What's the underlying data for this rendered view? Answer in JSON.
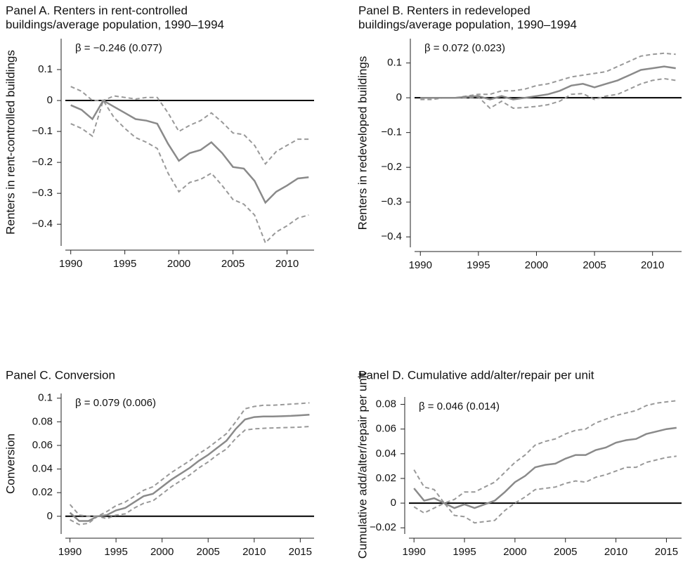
{
  "chart_data": [
    {
      "type": "line",
      "title": [
        "Panel A. Renters in rent-controlled",
        "buildings/average population, 1990–1994"
      ],
      "ylabel": "Renters in rent-controlled buildings",
      "annotation": "β = −0.246 (0.077)",
      "x": [
        1990,
        1991,
        1992,
        1993,
        1994,
        1995,
        1996,
        1997,
        1998,
        1999,
        2000,
        2001,
        2002,
        2003,
        2004,
        2005,
        2006,
        2007,
        2008,
        2009,
        2010,
        2011,
        2012
      ],
      "series": [
        {
          "color": "#8a8a8a",
          "linestyle": "solid",
          "values": [
            -0.015,
            -0.03,
            -0.06,
            0.0,
            -0.02,
            -0.04,
            -0.06,
            -0.065,
            -0.075,
            -0.14,
            -0.195,
            -0.17,
            -0.16,
            -0.135,
            -0.17,
            -0.215,
            -0.22,
            -0.26,
            -0.33,
            -0.295,
            -0.275,
            -0.252,
            -0.248
          ]
        },
        {
          "color": "#999999",
          "linestyle": "dashed",
          "values": [
            0.045,
            0.03,
            0.0,
            0.0,
            0.015,
            0.01,
            0.005,
            0.01,
            0.01,
            -0.04,
            -0.1,
            -0.08,
            -0.065,
            -0.04,
            -0.07,
            -0.105,
            -0.11,
            -0.145,
            -0.205,
            -0.165,
            -0.145,
            -0.125,
            -0.125
          ]
        },
        {
          "color": "#999999",
          "linestyle": "dashed",
          "values": [
            -0.075,
            -0.09,
            -0.115,
            0.0,
            -0.055,
            -0.09,
            -0.12,
            -0.135,
            -0.155,
            -0.235,
            -0.295,
            -0.265,
            -0.255,
            -0.235,
            -0.275,
            -0.32,
            -0.335,
            -0.37,
            -0.46,
            -0.425,
            -0.405,
            -0.38,
            -0.37
          ]
        }
      ],
      "hline": 0,
      "xlim": [
        1989.5,
        2012.5
      ],
      "xticks": [
        1990,
        1995,
        2000,
        2005,
        2010
      ],
      "ylim": [
        -0.47,
        0.2
      ],
      "yticks": [
        0.1,
        0,
        {
          "value": -0.1,
          "label": "−0.1"
        },
        {
          "value": -0.2,
          "label": "−0.2"
        },
        {
          "value": -0.3,
          "label": "−0.3"
        },
        {
          "value": -0.4,
          "label": "−0.4"
        }
      ]
    },
    {
      "type": "line",
      "title": [
        "Panel B. Renters in redeveloped",
        "buildings/average population, 1990–1994"
      ],
      "ylabel": "Renters in redeveloped buildings",
      "annotation": "β = 0.072 (0.023)",
      "x": [
        1990,
        1991,
        1992,
        1993,
        1994,
        1995,
        1996,
        1997,
        1998,
        1999,
        2000,
        2001,
        2002,
        2003,
        2004,
        2005,
        2006,
        2007,
        2008,
        2009,
        2010,
        2011,
        2012
      ],
      "series": [
        {
          "color": "#8a8a8a",
          "linestyle": "solid",
          "values": [
            0,
            0,
            0,
            0,
            0.003,
            0.005,
            -0.005,
            0.005,
            -0.005,
            0,
            0.005,
            0.01,
            0.02,
            0.035,
            0.04,
            0.03,
            0.04,
            0.05,
            0.065,
            0.08,
            0.085,
            0.09,
            0.085
          ]
        },
        {
          "color": "#999999",
          "linestyle": "dashed",
          "values": [
            0,
            0,
            0,
            0,
            0.005,
            0.01,
            0.01,
            0.02,
            0.02,
            0.025,
            0.035,
            0.04,
            0.05,
            0.06,
            0.065,
            0.07,
            0.075,
            0.09,
            0.105,
            0.12,
            0.125,
            0.128,
            0.125
          ]
        },
        {
          "color": "#999999",
          "linestyle": "dashed",
          "values": [
            -0.005,
            -0.005,
            0,
            0,
            0,
            0.002,
            -0.03,
            -0.01,
            -0.03,
            -0.028,
            -0.025,
            -0.02,
            -0.01,
            0.01,
            0.012,
            -0.005,
            0.005,
            0.01,
            0.025,
            0.04,
            0.05,
            0.055,
            0.05
          ]
        }
      ],
      "hline": 0,
      "xlim": [
        1989.5,
        2012.5
      ],
      "xticks": [
        1990,
        1995,
        2000,
        2005,
        2010
      ],
      "ylim": [
        -0.43,
        0.17
      ],
      "yticks": [
        0.1,
        0,
        {
          "value": -0.1,
          "label": "−0.1"
        },
        {
          "value": -0.2,
          "label": "−0.2"
        },
        {
          "value": -0.3,
          "label": "−0.3"
        },
        {
          "value": -0.4,
          "label": "−0.4"
        }
      ]
    },
    {
      "type": "line",
      "title": [
        "Panel C. Conversion"
      ],
      "ylabel": "Conversion",
      "annotation": "β = 0.079 (0.006)",
      "x": [
        1990,
        1991,
        1992,
        1993,
        1994,
        1995,
        1996,
        1997,
        1998,
        1999,
        2000,
        2001,
        2002,
        2003,
        2004,
        2005,
        2006,
        2007,
        2008,
        2009,
        2010,
        2011,
        2012,
        2013,
        2014,
        2015,
        2016
      ],
      "series": [
        {
          "color": "#8a8a8a",
          "linestyle": "solid",
          "values": [
            0.003,
            -0.004,
            -0.004,
            0.0,
            0.001,
            0.005,
            0.007,
            0.012,
            0.017,
            0.019,
            0.025,
            0.031,
            0.036,
            0.041,
            0.047,
            0.052,
            0.058,
            0.064,
            0.074,
            0.082,
            0.084,
            0.0845,
            0.0845,
            0.0847,
            0.085,
            0.0855,
            0.086
          ]
        },
        {
          "color": "#999999",
          "linestyle": "dashed",
          "values": [
            0.01,
            0.001,
            0.0,
            0.0,
            0.004,
            0.009,
            0.012,
            0.017,
            0.022,
            0.025,
            0.031,
            0.037,
            0.042,
            0.047,
            0.053,
            0.058,
            0.064,
            0.07,
            0.08,
            0.091,
            0.093,
            0.094,
            0.094,
            0.0945,
            0.095,
            0.0955,
            0.096
          ]
        },
        {
          "color": "#999999",
          "linestyle": "dashed",
          "values": [
            -0.003,
            -0.007,
            -0.006,
            0.0,
            -0.002,
            0.001,
            0.002,
            0.007,
            0.011,
            0.013,
            0.019,
            0.025,
            0.03,
            0.035,
            0.041,
            0.046,
            0.052,
            0.057,
            0.066,
            0.073,
            0.074,
            0.0745,
            0.0748,
            0.075,
            0.0752,
            0.0755,
            0.076
          ]
        }
      ],
      "hline": 0,
      "xlim": [
        1989.5,
        2016.5
      ],
      "xticks": [
        1990,
        1995,
        2000,
        2005,
        2010,
        2015
      ],
      "ylim": [
        -0.015,
        0.104
      ],
      "yticks": [
        0.1,
        0.08,
        0.06,
        0.04,
        0.02,
        0
      ]
    },
    {
      "type": "line",
      "title": [
        "Panel D. Cumulative add/alter/repair per unit"
      ],
      "ylabel": "Cumulative add/alter/repair per unit",
      "annotation": "β = 0.046 (0.014)",
      "x": [
        1990,
        1991,
        1992,
        1993,
        1994,
        1995,
        1996,
        1997,
        1998,
        1999,
        2000,
        2001,
        2002,
        2003,
        2004,
        2005,
        2006,
        2007,
        2008,
        2009,
        2010,
        2011,
        2012,
        2013,
        2014,
        2015,
        2016
      ],
      "series": [
        {
          "color": "#8a8a8a",
          "linestyle": "solid",
          "values": [
            0.012,
            0.002,
            0.004,
            0.0,
            -0.004,
            -0.001,
            -0.004,
            -0.001,
            0.002,
            0.009,
            0.017,
            0.022,
            0.029,
            0.031,
            0.032,
            0.036,
            0.039,
            0.039,
            0.043,
            0.045,
            0.049,
            0.051,
            0.052,
            0.056,
            0.058,
            0.06,
            0.061
          ]
        },
        {
          "color": "#999999",
          "linestyle": "dashed",
          "values": [
            0.027,
            0.013,
            0.011,
            0.0,
            0.003,
            0.009,
            0.009,
            0.013,
            0.017,
            0.025,
            0.033,
            0.039,
            0.047,
            0.05,
            0.052,
            0.056,
            0.059,
            0.06,
            0.065,
            0.068,
            0.071,
            0.073,
            0.075,
            0.079,
            0.081,
            0.082,
            0.083
          ]
        },
        {
          "color": "#999999",
          "linestyle": "dashed",
          "values": [
            -0.003,
            -0.008,
            -0.004,
            0.0,
            -0.01,
            -0.011,
            -0.016,
            -0.015,
            -0.014,
            -0.006,
            0.0,
            0.005,
            0.011,
            0.012,
            0.013,
            0.016,
            0.018,
            0.017,
            0.021,
            0.023,
            0.026,
            0.029,
            0.029,
            0.033,
            0.035,
            0.037,
            0.038
          ]
        }
      ],
      "hline": 0,
      "xlim": [
        1989.5,
        2016.5
      ],
      "xticks": [
        1990,
        1995,
        2000,
        2005,
        2010,
        2015
      ],
      "ylim": [
        -0.025,
        0.086
      ],
      "yticks": [
        0.08,
        0.06,
        0.04,
        0.02,
        0,
        {
          "value": -0.02,
          "label": "−0.02"
        }
      ]
    }
  ]
}
